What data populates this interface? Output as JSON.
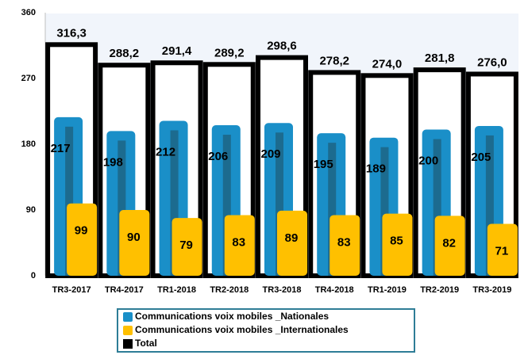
{
  "chart_data": {
    "type": "bar",
    "categories": [
      "TR3-2017",
      "TR4-2017",
      "TR1-2018",
      "TR2-2018",
      "TR3-2018",
      "TR4-2018",
      "TR1-2019",
      "TR2-2019",
      "TR3-2019"
    ],
    "series": [
      {
        "name": "Communications voix mobiles _Nationales",
        "color": "#1a8fc8",
        "values": [
          217,
          198,
          212,
          206,
          209,
          195,
          189,
          200,
          205
        ]
      },
      {
        "name": "Communications voix mobiles _Internationales",
        "color": "#ffc000",
        "values": [
          99,
          90,
          79,
          83,
          89,
          83,
          85,
          82,
          71
        ]
      },
      {
        "name": "Total",
        "color": "#000000",
        "values": [
          316.3,
          288.2,
          291.4,
          289.2,
          298.6,
          278.2,
          274.0,
          281.8,
          276.0
        ],
        "value_labels": [
          "316,3",
          "288,2",
          "291,4",
          "289,2",
          "298,6",
          "278,2",
          "274,0",
          "281,8",
          "276,0"
        ]
      }
    ],
    "ylim": [
      0,
      360
    ],
    "yticks": [
      0,
      90,
      180,
      270,
      360
    ],
    "grid": true
  }
}
